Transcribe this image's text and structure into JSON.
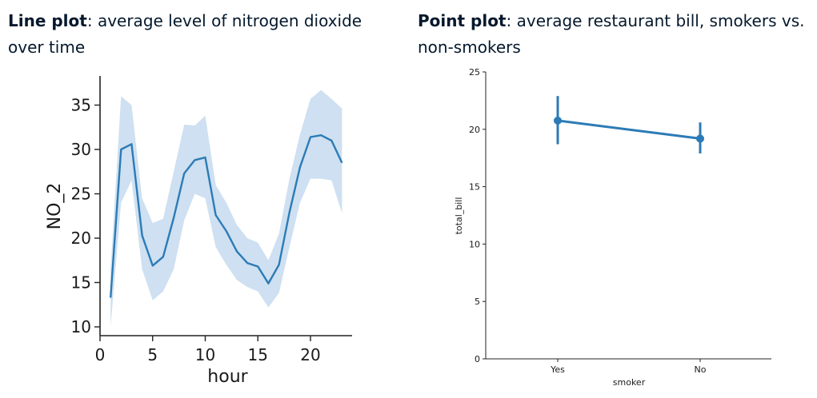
{
  "captions": {
    "left": {
      "bold": "Line plot",
      "rest": ": average level of nitrogen dioxide over time"
    },
    "right": {
      "bold": "Point plot",
      "rest": ": average restaurant bill, smokers vs. non-smokers"
    }
  },
  "chart_data": [
    {
      "type": "line",
      "xlabel": "hour",
      "ylabel": "NO_2",
      "xlim": [
        0,
        24
      ],
      "ylim": [
        9,
        38
      ],
      "xticks": [
        0,
        5,
        10,
        15,
        20
      ],
      "yticks": [
        10,
        15,
        20,
        25,
        30,
        35
      ],
      "grid": false,
      "line_color": "#2c7bb6",
      "band_color": "#c6dbef",
      "series": [
        {
          "x": [
            1,
            2,
            3,
            4,
            5,
            6,
            7,
            8,
            9,
            10,
            11,
            12,
            13,
            14,
            15,
            16,
            17,
            18,
            19,
            20,
            21,
            22,
            23
          ],
          "y": [
            13.3,
            30.0,
            30.6,
            20.3,
            16.9,
            17.9,
            22.3,
            27.3,
            28.8,
            29.1,
            22.6,
            20.8,
            18.5,
            17.2,
            16.8,
            14.9,
            17.0,
            22.9,
            28.0,
            31.4,
            31.6,
            31.0,
            28.5
          ],
          "ci_low": [
            10.0,
            24.0,
            26.5,
            16.5,
            13.0,
            14.0,
            16.5,
            22.0,
            25.0,
            24.5,
            19.0,
            17.0,
            15.3,
            14.5,
            14.0,
            12.2,
            13.8,
            19.0,
            24.0,
            26.7,
            26.7,
            26.5,
            22.8
          ],
          "ci_high": [
            16.5,
            36.0,
            35.0,
            24.5,
            21.7,
            22.2,
            27.5,
            32.8,
            32.7,
            33.8,
            26.0,
            24.0,
            21.5,
            20.0,
            19.5,
            17.5,
            20.5,
            26.7,
            31.7,
            35.7,
            36.7,
            35.7,
            34.6
          ]
        }
      ]
    },
    {
      "type": "scatter",
      "subtype": "pointplot",
      "xlabel": "smoker",
      "ylabel": "total_bill",
      "categories": [
        "Yes",
        "No"
      ],
      "ylim": [
        0,
        25
      ],
      "yticks": [
        0,
        5,
        10,
        15,
        20,
        25
      ],
      "grid": false,
      "color": "#2c7bb6",
      "values": [
        20.76,
        19.19
      ],
      "ci_low": [
        18.7,
        17.9
      ],
      "ci_high": [
        22.9,
        20.6
      ]
    }
  ]
}
